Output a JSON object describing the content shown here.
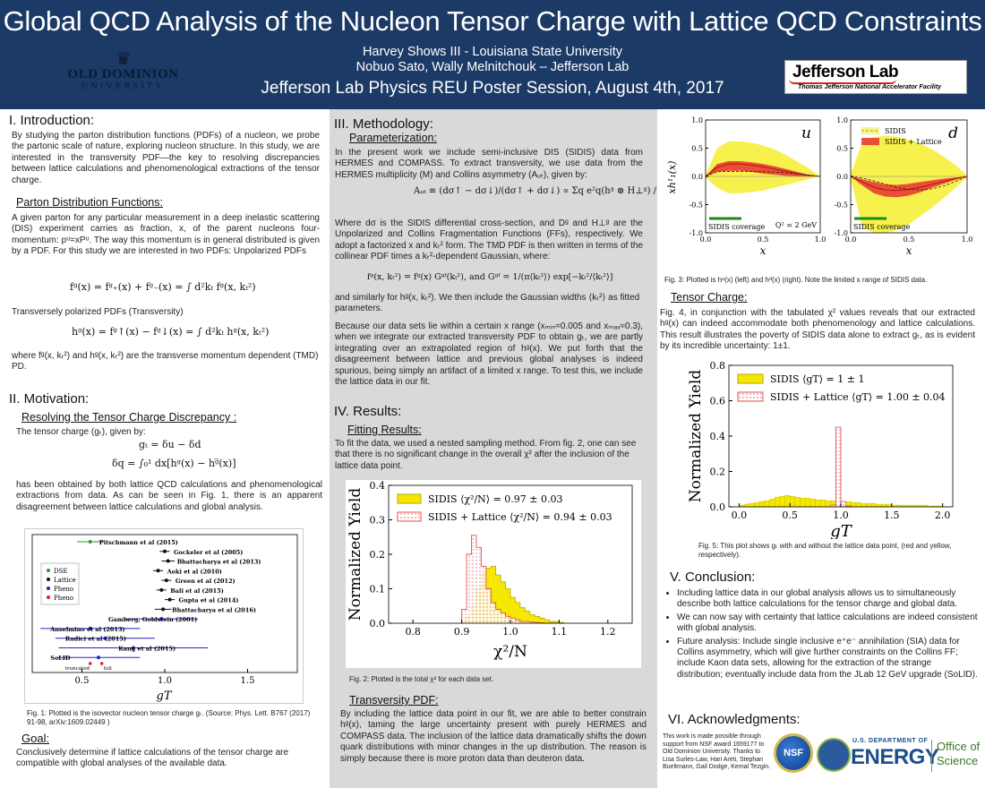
{
  "header": {
    "title": "Global QCD Analysis of the Nucleon Tensor Charge with Lattice QCD Constraints",
    "author_line1": "Harvey Shows III - Louisiana State University",
    "author_line2": "Nobuo Sato, Wally Melnitchouk – Jefferson Lab",
    "session": "Jefferson Lab Physics REU Poster Session, August 4th, 2017",
    "odu_name": "OLD DOMINION",
    "odu_sub": "UNIVERSITY",
    "jlab_name": "Jefferson Lab",
    "jlab_sub": "Thomas Jefferson National Accelerator Facility"
  },
  "intro": {
    "heading": "I. Introduction:",
    "p1": "By studying the parton distribution functions (PDFs) of a nucleon, we probe the partonic scale of nature, exploring nucleon structure. In this study, we are interested in the transversity PDF—the key to resolving discrepancies between lattice calculations and phenomenological extractions of the tensor charge.",
    "sub": "Parton Distribution Functions:",
    "p2": "A given parton for any particular measurement in a deep inelastic scattering (DIS) experiment carries as fraction, x, of the parent nucleons four-momentum: pᵘ=xPᵘ. The way this momentum is in general distributed is given by a PDF. For this study we are interested in two PDFs: Unpolarized PDFs",
    "eq1": "fᵍ(x) = fᵍ₊(x) + fᵍ₋(x) = ∫ d²kₜ fᵍ(x, kₜ²)",
    "p3": "Transversely polarized PDFs (Transversity)",
    "eq2": "hᵍ(x) = fᵍ↑(x) − fᵍ↓(x) = ∫ d²kₜ hᵍ(x, kₜ²)",
    "p4": "where fᵍ(x, kₜ²) and hᵍ(x, kₜ²) are the transverse momentum dependent (TMD) PD."
  },
  "motivation": {
    "heading": "II. Motivation:",
    "sub": "Resolving the Tensor Charge Discrepancy :",
    "p1": "The tensor charge (gₜ), given by:",
    "eq1": "gₜ = δu − δd",
    "eq2": "δq = ∫₀¹ dx[hᵍ(x) − hᵍ̅(x)]",
    "p2": "has been obtained by both lattice QCD calculations and phenomenological extractions from data. As can be seen in Fig. 1, there is an apparent disagreement between lattice calculations and global analysis.",
    "fig1_caption": "Fig. 1: Plotted is the isovector nucleon tensor charge gₜ. (Source: Phys. Lett. B767 (2017) 91-98, arXiv:1609.02449 )",
    "goal_sub": "Goal:",
    "goal_text": "Conclusively determine if lattice calculations of the tensor charge are compatible with global analyses of the available data."
  },
  "methodology": {
    "heading": "III. Methodology:",
    "sub": "Parameterization:",
    "p1": "In the present work we include semi-inclusive DIS (SIDIS) data from HERMES and COMPASS. To extract transversity, we use data from the HERMES multiplicity (M) and Collins asymmetry (Aᵤₜ), given by:",
    "eq1": "Aᵤₜ ≡ (dσ↑ − dσ↓)/(dσ↑ + dσ↓) ∝ Σq e²q(hᵍ ⊗ H⊥ᵍ) / Σq e²q(fᵍ ⊗ Dᵍ)",
    "p2": "Where dσ is the SIDIS differential cross-section, and Dᵍ and H⊥ᵍ are the Unpolarized and Collins Fragmentation Functions (FFs), respectively. We adopt a factorized x and kₜ² form. The TMD PDF is then written in terms of the collinear PDF times a kₜ²-dependent Gaussian, where:",
    "eq2": "fᵍ(x, kₜ²) = fᵍ(x) Gᵍᶠ(kₜ²), and Gᵍᶠ = 1/(π⟨kₜ²⟩) exp[−kₜ²/⟨kₜ²⟩]",
    "p3": "and similarly for hᵍ(x, kₜ²). We then include the Gaussian widths ⟨kₜ²⟩ as fitted parameters.",
    "p4": "Because our data sets lie within a certain x range (xₘᵢₙ≈0.005 and xₘₐₓ≈0.3), when we integrate our extracted transversity PDF to obtain gₜ, we are partly integrating over an extrapolated region of hᵍ(x). We put forth that the disagreement between lattice and previous global analyses is indeed spurious, being simply an artifact of a limited x range. To test this, we include the lattice data in our fit."
  },
  "results": {
    "heading": "IV. Results:",
    "sub": "Fitting Results:",
    "p1": "To fit the data, we used a nested sampling method. From fig. 2, one can see that there is no significant change in the overall χ² after the inclusion of the lattice data point.",
    "fig2_caption": "Fig. 2: Plotted is the total χ² for each data set.",
    "sub2": "Transversity PDF:",
    "p2": "By including the lattice data point in our fit, we are able to better constrain hᵍ(x), taming the large uncertainty present with purely HERMES and COMPASS data. The inclusion of the lattice data dramatically shifts the down quark distributions with minor changes in the up distribution. The reason is simply because there is more proton data than deuteron data."
  },
  "col3": {
    "fig3_caption": "Fig. 3: Plotted is hᵘ(x) (left) and hᵈ(x) (right). Note the limited x range of SIDIS data.",
    "tensor_sub": "Tensor Charge:",
    "tensor_text": "Fig. 4, in conjunction with the tabulated χ² values reveals that our extracted hᵍ(x) can indeed accommodate both phenomenology and lattice calculations. This result illustrates the poverty of SIDIS data alone to extract gₜ, as is evident by its incredible uncertainty: 1±1.",
    "fig5_caption": "Fig. 5: This plot shows gₜ with and without the lattice data point, (red and yellow, respectively).",
    "conclusion_heading": "V. Conclusion:",
    "conclusion_items": [
      "Including lattice data in our global analysis allows us to simultaneously describe both lattice calculations for the tensor charge and global data.",
      "We can now say with certainty that lattice calculations are indeed consistent with global analysis.",
      "Future analysis: Include single inclusive e⁺e⁻ annihilation (SIA) data for Collins asymmetry, which will give further constraints on the Collins FF; include Kaon data sets, allowing for the extraction of the strange distribution; eventually include data from the JLab 12 GeV upgrade (SoLID)."
    ],
    "ack_heading": "VI. Acknowledgments:",
    "ack_text": "This work is made possible through support from NSF award 1659177 to Old Dominion University. Thanks to Lisa Surles-Law, Hari Areti, Stephan Bueltmann, Gail Dodge, Kemal Tezgin.",
    "nsf": "NSF",
    "doe_line1": "U.S. DEPARTMENT OF",
    "doe_line2": "ENERGY",
    "office_line1": "Office of",
    "office_line2": "Science"
  },
  "chart_data": [
    {
      "id": "fig1",
      "type": "scatter",
      "xlabel": "gT",
      "xlim": [
        0.2,
        1.8
      ],
      "xticks": [
        0.5,
        1.0,
        1.5
      ],
      "legend": [
        "DSE",
        "Lattice",
        "Pheno",
        "Pheno"
      ],
      "legend_colors": [
        "#2a9a2a",
        "#111111",
        "#2222cc",
        "#dd2222"
      ],
      "points": [
        {
          "label": "Pitschmann et al (2015)",
          "value": 0.55,
          "err": 0.08,
          "group": "DSE"
        },
        {
          "label": "Gockeler et al (2005)",
          "value": 1.0,
          "err": 0.03,
          "group": "Lattice"
        },
        {
          "label": "Bhattacharya et al (2013)",
          "value": 1.02,
          "err": 0.04,
          "group": "Lattice"
        },
        {
          "label": "Aoki et al (2010)",
          "value": 0.96,
          "err": 0.03,
          "group": "Lattice"
        },
        {
          "label": "Green et al (2012)",
          "value": 1.01,
          "err": 0.03,
          "group": "Lattice"
        },
        {
          "label": "Bali et al (2015)",
          "value": 0.98,
          "err": 0.03,
          "group": "Lattice"
        },
        {
          "label": "Gupta et al (2014)",
          "value": 1.03,
          "err": 0.03,
          "group": "Lattice"
        },
        {
          "label": "Bhattacharya et al (2016)",
          "value": 0.99,
          "err": 0.05,
          "group": "Lattice"
        },
        {
          "label": "Gamberg, Goldstein (2001)",
          "value": 0.98,
          "err": 0.22,
          "group": "Pheno"
        },
        {
          "label": "Anselmino et al (2013)",
          "value": 0.55,
          "err": 0.3,
          "group": "Pheno"
        },
        {
          "label": "Radici et al (2015)",
          "value": 0.64,
          "err": 0.3,
          "group": "Pheno"
        },
        {
          "label": "Kang et al (2015)",
          "value": 0.81,
          "err": 0.45,
          "group": "Pheno"
        },
        {
          "label": "SoLID",
          "value": 0.6,
          "err": 0.25,
          "group": "Pheno"
        }
      ],
      "solid_markers": [
        {
          "label": "truncated",
          "value": 0.55
        },
        {
          "label": "full",
          "value": 0.62
        }
      ]
    },
    {
      "id": "fig2",
      "type": "histogram",
      "xlabel": "χ²/N",
      "ylabel": "Normalized Yield",
      "xlim": [
        0.75,
        1.25
      ],
      "ylim": [
        0,
        0.4
      ],
      "xticks": [
        0.8,
        0.9,
        1.0,
        1.1,
        1.2
      ],
      "yticks": [
        0.0,
        0.1,
        0.2,
        0.3,
        0.4
      ],
      "bin_edges": [
        0.9,
        0.91,
        0.92,
        0.93,
        0.94,
        0.95,
        0.96,
        0.97,
        0.98,
        0.99,
        1.0,
        1.01,
        1.02,
        1.03,
        1.04,
        1.05,
        1.06,
        1.07,
        1.08,
        1.09,
        1.1,
        1.11
      ],
      "series": [
        {
          "name": "SIDIS ⟨χ²/N⟩ = 0.97 ± 0.03",
          "color": "#f4e800",
          "values": [
            0.01,
            0.02,
            0.05,
            0.1,
            0.145,
            0.16,
            0.165,
            0.14,
            0.12,
            0.1,
            0.075,
            0.06,
            0.045,
            0.035,
            0.025,
            0.02,
            0.015,
            0.01,
            0.005,
            0.005,
            0.002
          ]
        },
        {
          "name": "SIDIS + Lattice ⟨χ²/N⟩ = 0.94 ± 0.03",
          "color": "#f26d6d",
          "values": [
            0.04,
            0.2,
            0.255,
            0.22,
            0.165,
            0.1,
            0.06,
            0.04,
            0.03,
            0.02,
            0.015,
            0.01,
            0.005,
            0.005,
            0.003,
            0.002,
            0.001,
            0.0,
            0.0,
            0.0,
            0.0
          ]
        }
      ]
    },
    {
      "id": "fig3",
      "type": "area",
      "panels": [
        {
          "flavor": "u",
          "note": "Q² = 2 GeV",
          "coverage": "SIDIS coverage",
          "x": [
            0.0,
            0.1,
            0.2,
            0.3,
            0.4,
            0.5,
            0.6,
            0.7,
            0.8,
            0.9,
            1.0
          ],
          "central": [
            0.0,
            0.16,
            0.22,
            0.22,
            0.2,
            0.17,
            0.13,
            0.09,
            0.05,
            0.02,
            0.0
          ],
          "band_low": [
            0.0,
            0.08,
            0.1,
            0.1,
            0.08,
            0.05,
            0.03,
            0.01,
            0.0,
            0.0,
            0.0
          ],
          "band_high": [
            0.0,
            0.22,
            0.27,
            0.27,
            0.25,
            0.22,
            0.18,
            0.13,
            0.08,
            0.03,
            0.0
          ],
          "sidis_low": [
            -0.02,
            -0.2,
            -0.3,
            -0.3,
            -0.28,
            -0.25,
            -0.2,
            -0.15,
            -0.1,
            -0.05,
            0.0
          ],
          "sidis_high": [
            0.02,
            0.5,
            0.62,
            0.62,
            0.6,
            0.55,
            0.48,
            0.38,
            0.26,
            0.14,
            0.0
          ]
        },
        {
          "flavor": "d",
          "coverage": "SIDIS coverage",
          "x": [
            0.0,
            0.1,
            0.2,
            0.3,
            0.4,
            0.5,
            0.6,
            0.7,
            0.8,
            0.9,
            1.0
          ],
          "central": [
            0.0,
            -0.1,
            -0.19,
            -0.24,
            -0.25,
            -0.23,
            -0.19,
            -0.14,
            -0.09,
            -0.04,
            0.0
          ],
          "band_low": [
            0.0,
            -0.16,
            -0.3,
            -0.36,
            -0.37,
            -0.34,
            -0.28,
            -0.2,
            -0.13,
            -0.06,
            0.0
          ],
          "band_high": [
            0.0,
            -0.05,
            -0.1,
            -0.14,
            -0.15,
            -0.13,
            -0.1,
            -0.07,
            -0.04,
            -0.02,
            0.0
          ],
          "sidis_central": [
            0.0,
            -0.03,
            -0.08,
            -0.14,
            -0.2,
            -0.23,
            -0.24,
            -0.22,
            -0.17,
            -0.09,
            0.0
          ],
          "sidis_low": [
            -0.04,
            -0.9,
            -1.0,
            -1.0,
            -0.95,
            -0.85,
            -0.7,
            -0.55,
            -0.38,
            -0.2,
            -0.02
          ],
          "sidis_high": [
            0.04,
            0.6,
            0.7,
            0.72,
            0.7,
            0.65,
            0.58,
            0.48,
            0.35,
            0.2,
            0.02
          ]
        }
      ],
      "xlabel": "x",
      "ylabel": "xh¹₁(x)",
      "ylim": [
        -1.0,
        1.0
      ],
      "yticks": [
        -1.0,
        -0.5,
        0.0,
        0.5,
        1.0
      ],
      "xticks": [
        0.0,
        0.5,
        1.0
      ],
      "legend": [
        "SIDIS",
        "SIDIS + Lattice"
      ]
    },
    {
      "id": "fig5",
      "type": "histogram",
      "xlabel": "gT",
      "ylabel": "Normalized Yield",
      "xlim": [
        -0.1,
        2.1
      ],
      "ylim": [
        0,
        0.8
      ],
      "xticks": [
        0.0,
        0.5,
        1.0,
        1.5,
        2.0
      ],
      "yticks": [
        0.0,
        0.2,
        0.4,
        0.6,
        0.8
      ],
      "series": [
        {
          "name": "SIDIS ⟨gT⟩ = 1 ± 1",
          "color": "#f4e800",
          "bin_start": 0.0,
          "bin_width": 0.05,
          "values": [
            0.01,
            0.015,
            0.02,
            0.025,
            0.03,
            0.035,
            0.045,
            0.055,
            0.06,
            0.065,
            0.06,
            0.055,
            0.05,
            0.05,
            0.045,
            0.04,
            0.04,
            0.035,
            0.035,
            0.03,
            0.03,
            0.03,
            0.025,
            0.025,
            0.02,
            0.02,
            0.02,
            0.015,
            0.015,
            0.015,
            0.01,
            0.01,
            0.01,
            0.01,
            0.01,
            0.01,
            0.01,
            0.005,
            0.005,
            0.005
          ]
        },
        {
          "name": "SIDIS + Lattice ⟨gT⟩ = 1.00 ± 0.04",
          "color": "#f26d6d",
          "bin_start": 0.9,
          "bin_width": 0.05,
          "values": [
            0.01,
            0.45,
            0.03,
            0.005
          ]
        }
      ]
    }
  ]
}
